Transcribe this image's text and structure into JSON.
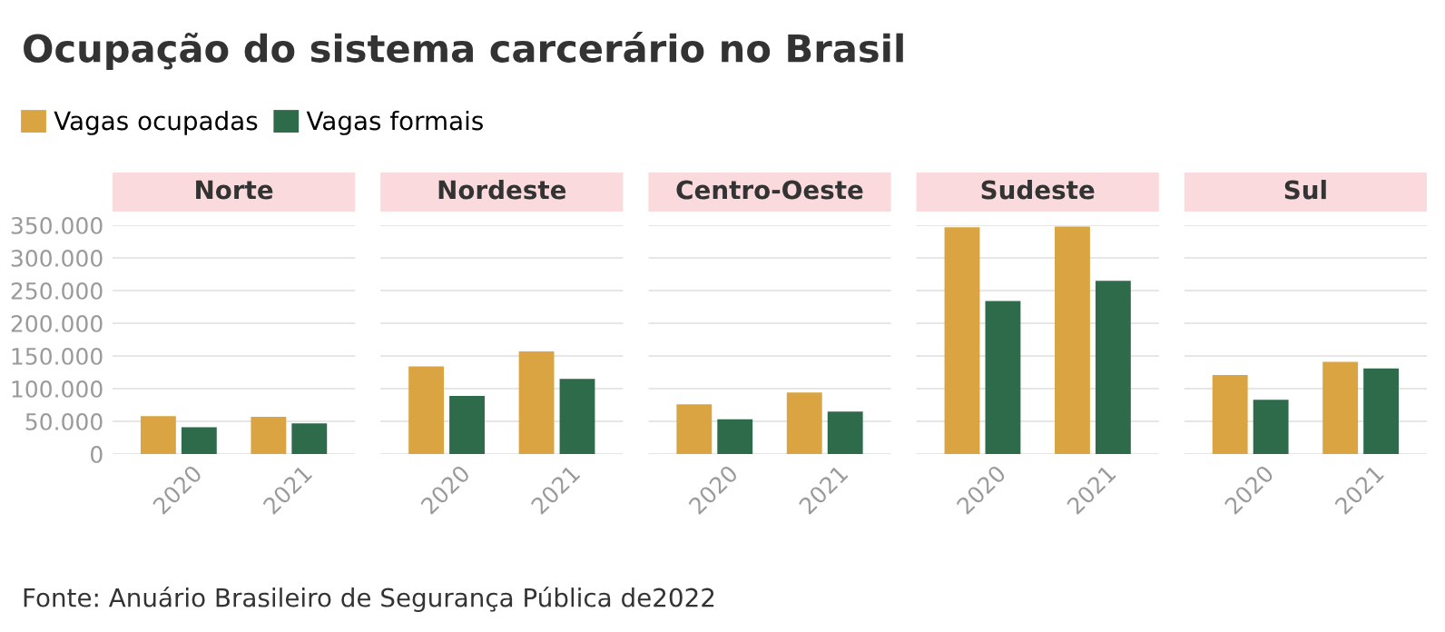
{
  "chart_data": [
    {
      "type": "bar",
      "title": "Norte",
      "categories": [
        "2020",
        "2021"
      ],
      "series": [
        {
          "name": "Vagas ocupadas",
          "color": "#d9a441",
          "values": [
            58000,
            57000
          ]
        },
        {
          "name": "Vagas formais",
          "color": "#2e6b4b",
          "values": [
            41000,
            47000
          ]
        }
      ],
      "ylim": [
        0,
        350000
      ],
      "yticks": [
        0,
        {
          "value": 50000,
          "label": "50.000"
        },
        {
          "value": 100000,
          "label": "100.000"
        },
        {
          "value": 150000,
          "label": "150.000"
        },
        {
          "value": 200000,
          "label": "200.000"
        },
        {
          "value": 250000,
          "label": "250.000"
        },
        {
          "value": 300000,
          "label": "300.000"
        },
        {
          "value": 350000,
          "label": "350.000"
        }
      ],
      "grid": "y",
      "legend": "top"
    },
    {
      "type": "bar",
      "title": "Nordeste",
      "categories": [
        "2020",
        "2021"
      ],
      "series": [
        {
          "color": "#d9a441",
          "values": [
            134000,
            157000
          ]
        },
        {
          "color": "#2e6b4b",
          "values": [
            89000,
            115000
          ]
        }
      ],
      "ylim": [
        0,
        350000
      ],
      "tick_labels": "x",
      "grid": "y"
    },
    {
      "type": "bar",
      "title": "Centro-Oeste",
      "categories": [
        "2020",
        "2021"
      ],
      "series": [
        {
          "color": "#d9a441",
          "values": [
            76000,
            94000
          ]
        },
        {
          "color": "#2e6b4b",
          "values": [
            53000,
            65000
          ]
        }
      ],
      "ylim": [
        0,
        350000
      ],
      "tick_labels": "x",
      "grid": "y"
    },
    {
      "type": "bar",
      "title": "Sudeste",
      "categories": [
        "2020",
        "2021"
      ],
      "series": [
        {
          "color": "#d9a441",
          "values": [
            347000,
            348000
          ]
        },
        {
          "color": "#2e6b4b",
          "values": [
            234000,
            265000
          ]
        }
      ],
      "ylim": [
        0,
        350000
      ],
      "tick_labels": "x",
      "grid": "y"
    },
    {
      "type": "bar",
      "title": "Sul",
      "categories": [
        "2020",
        "2021"
      ],
      "series": [
        {
          "color": "#d9a441",
          "values": [
            121000,
            141000
          ]
        },
        {
          "color": "#2e6b4b",
          "values": [
            83000,
            131000
          ]
        }
      ],
      "ylim": [
        0,
        350000
      ],
      "tick_labels": "x",
      "grid": "y",
      "annotations": [
        "Ocupação do sistema carcerário no Brasil",
        "Fonte: Anuário Brasileiro de Segurança Pública de2022"
      ]
    }
  ]
}
